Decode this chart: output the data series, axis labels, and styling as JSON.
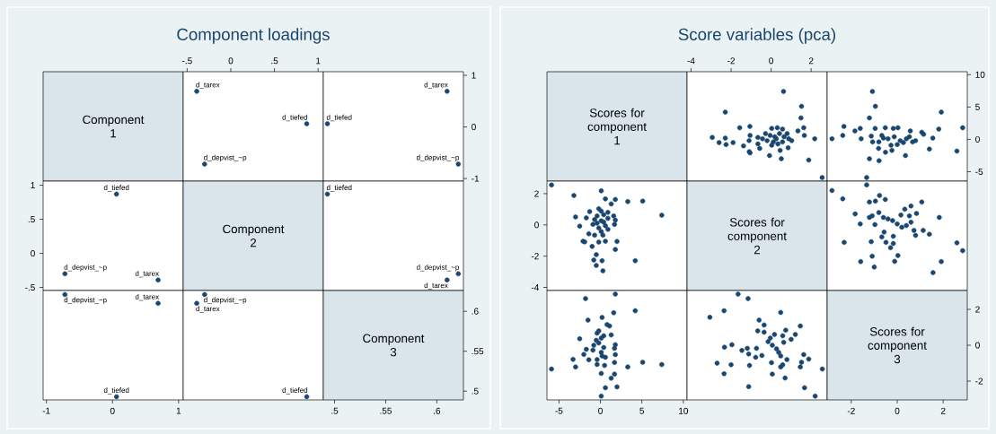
{
  "chart_data": [
    {
      "type": "other",
      "annotations": [
        "Component 1"
      ]
    },
    {
      "type": "scatter",
      "title": "Component loadings",
      "xlim": [
        -0.545,
        1.06
      ],
      "ylim": [
        -1.05,
        1.07
      ],
      "xticks": [
        {
          "value": -0.5,
          "label": "-.5"
        },
        0,
        {
          "value": 0.5,
          "label": ".5"
        },
        1
      ],
      "tick_labels": "x",
      "marker": "circle",
      "series": [
        {
          "name": "d_tarex",
          "color": "#1a476f",
          "x": [
            -0.39
          ],
          "values": [
            0.69
          ]
        },
        {
          "name": "d_tiefed",
          "color": "#1a476f",
          "x": [
            0.87
          ],
          "values": [
            0.06
          ]
        },
        {
          "name": "d_depvist_~p",
          "color": "#1a476f",
          "x": [
            -0.3
          ],
          "values": [
            -0.72
          ]
        }
      ]
    },
    {
      "type": "scatter",
      "xlim": [
        0.489,
        0.626
      ],
      "ylim": [
        -1.05,
        1.07
      ],
      "yticks": [
        -1,
        0,
        1
      ],
      "tick_labels": "y",
      "marker": "circle",
      "series": [
        {
          "name": "d_tarex",
          "color": "#1a476f",
          "x": [
            0.61
          ],
          "values": [
            0.69
          ]
        },
        {
          "name": "d_tiefed",
          "color": "#1a476f",
          "x": [
            0.493
          ],
          "values": [
            0.06
          ]
        },
        {
          "name": "d_depvist_~p",
          "color": "#1a476f",
          "x": [
            0.621
          ],
          "values": [
            -0.72
          ]
        }
      ]
    },
    {
      "type": "scatter",
      "xlim": [
        -1.05,
        1.07
      ],
      "ylim": [
        -0.545,
        1.06
      ],
      "yticks": [
        {
          "value": -0.5,
          "label": "-.5"
        },
        0,
        {
          "value": 0.5,
          "label": ".5"
        },
        1
      ],
      "tick_labels": "y",
      "marker": "circle",
      "series": [
        {
          "name": "d_tarex",
          "color": "#1a476f",
          "x": [
            0.69
          ],
          "values": [
            -0.39
          ]
        },
        {
          "name": "d_tiefed",
          "color": "#1a476f",
          "x": [
            0.06
          ],
          "values": [
            0.87
          ]
        },
        {
          "name": "d_depvist_~p",
          "color": "#1a476f",
          "x": [
            -0.72
          ],
          "values": [
            -0.3
          ]
        }
      ]
    },
    {
      "type": "other",
      "annotations": [
        "Component 2"
      ]
    },
    {
      "type": "scatter",
      "xlim": [
        0.489,
        0.626
      ],
      "ylim": [
        -0.545,
        1.06
      ],
      "tick_labels": false,
      "marker": "circle",
      "series": [
        {
          "name": "d_tarex",
          "color": "#1a476f",
          "x": [
            0.61
          ],
          "values": [
            -0.39
          ]
        },
        {
          "name": "d_tiefed",
          "color": "#1a476f",
          "x": [
            0.493
          ],
          "values": [
            0.87
          ]
        },
        {
          "name": "d_depvist_~p",
          "color": "#1a476f",
          "x": [
            0.621
          ],
          "values": [
            -0.3
          ]
        }
      ]
    },
    {
      "type": "scatter",
      "xlim": [
        -1.05,
        1.07
      ],
      "ylim": [
        0.489,
        0.626
      ],
      "xticks": [
        -1,
        0,
        1
      ],
      "tick_labels": "x",
      "marker": "circle",
      "series": [
        {
          "name": "d_tarex",
          "color": "#1a476f",
          "x": [
            0.69
          ],
          "values": [
            0.61
          ]
        },
        {
          "name": "d_tiefed",
          "color": "#1a476f",
          "x": [
            0.06
          ],
          "values": [
            0.493
          ]
        },
        {
          "name": "d_depvist_~p",
          "color": "#1a476f",
          "x": [
            -0.72
          ],
          "values": [
            0.621
          ]
        }
      ]
    },
    {
      "type": "scatter",
      "xlim": [
        -0.545,
        1.06
      ],
      "ylim": [
        0.489,
        0.626
      ],
      "tick_labels": false,
      "marker": "circle",
      "series": [
        {
          "name": "d_tarex",
          "color": "#1a476f",
          "x": [
            -0.39
          ],
          "values": [
            0.61
          ]
        },
        {
          "name": "d_tiefed",
          "color": "#1a476f",
          "x": [
            0.87
          ],
          "values": [
            0.493
          ]
        },
        {
          "name": "d_depvist_~p",
          "color": "#1a476f",
          "x": [
            -0.3
          ],
          "values": [
            0.621
          ]
        }
      ]
    },
    {
      "type": "scatter",
      "annotations": [
        "Component 3"
      ],
      "xlim": [
        0.489,
        0.626
      ],
      "ylim": [
        0.489,
        0.626
      ],
      "xticks": [
        {
          "value": 0.5,
          "label": ".5"
        },
        {
          "value": 0.55,
          "label": ".55"
        },
        {
          "value": 0.6,
          "label": ".6"
        }
      ],
      "yticks": [
        {
          "value": 0.5,
          "label": ".5"
        },
        {
          "value": 0.55,
          "label": ".55"
        },
        {
          "value": 0.6,
          "label": ".6"
        }
      ]
    },
    {
      "type": "other",
      "annotations": [
        "Scores for component 1"
      ]
    },
    {
      "type": "scatter",
      "title": "Score variables (pca)",
      "xlim": [
        -4.2,
        2.8
      ],
      "ylim": [
        -6.45,
        10.45
      ],
      "xticks": [
        -4,
        -2,
        0,
        2
      ],
      "tick_labels": "x",
      "marker": "circle",
      "series": [
        {
          "color": "#1a476f",
          "x": [
            0.62,
            1.52,
            -2.29,
            1.49,
            -1.57,
            -1.06,
            1.63,
            1.34,
            -2.94,
            -2.29,
            -2.6,
            -2.25,
            -1.9,
            -1.38,
            -1.05,
            -1.1,
            -1.09,
            -1.05,
            -0.66,
            -0.66,
            -0.57,
            -0.08,
            0.45,
            0.51,
            0.85,
            1.66,
            2.18,
            1.88,
            2.55,
            0.03,
            0.31,
            0.57,
            -0.28,
            -0.05,
            0.18,
            0.42,
            0.65,
            0.88,
            1.03,
            0.11,
            0.34,
            -0.2,
            -0.43,
            0.57,
            0.8,
            0.03,
            0.26
          ],
          "values": [
            7.4,
            5.1,
            4.2,
            3.3,
            1.8,
            2.0,
            1.8,
            1.3,
            0.3,
            0.2,
            -0.5,
            -0.8,
            -0.5,
            -1.0,
            0.6,
            -0.2,
            -1.9,
            -2.1,
            0.3,
            -0.7,
            -1.4,
            -2.5,
            -1.7,
            -3.0,
            -1.3,
            0.6,
            0.1,
            -3.2,
            -5.9,
            1.7,
            1.8,
            1.6,
            0.9,
            0.6,
            0.4,
            0.9,
            0.4,
            0.1,
            -0.2,
            -0.4,
            -0.7,
            -0.2,
            0.1,
            -0.4,
            0.9,
            -0.9,
            0.1
          ]
        }
      ]
    },
    {
      "type": "scatter",
      "xlim": [
        -3.05,
        3.05
      ],
      "ylim": [
        -6.45,
        10.45
      ],
      "yticks": [
        -5,
        0,
        5,
        10
      ],
      "tick_labels": "y",
      "marker": "circle",
      "series": [
        {
          "color": "#1a476f",
          "x": [
            -1.08,
            -0.95,
            1.92,
            -1.21,
            -2.32,
            2.85,
            1.81,
            -1.61,
            -1.84,
            -2.37,
            -2.84,
            -1.57,
            -1.13,
            -0.96,
            -0.52,
            -0.17,
            0.03,
            0.57,
            1.07,
            1.15,
            1.55,
            1.4,
            2.6,
            0.36,
            -1.21,
            -0.79,
            -0.51,
            -0.23,
            -1.33,
            -0.81,
            -0.67,
            -0.4,
            -0.13,
            0.13,
            0.4,
            0.67,
            0.8,
            -0.27,
            0.0,
            0.27,
            -0.8,
            -0.6,
            0.53,
            -1.07
          ],
          "values": [
            7.4,
            5.1,
            4.2,
            3.3,
            2.0,
            1.8,
            1.6,
            1.7,
            1.3,
            0.6,
            0.1,
            0.1,
            0.5,
            1.7,
            1.8,
            1.7,
            1.8,
            1.3,
            1.1,
            0.8,
            0.2,
            -1.5,
            -1.8,
            -2.5,
            -3.0,
            -3.3,
            -2.0,
            -1.7,
            -5.9,
            -1.4,
            0.6,
            0.1,
            0.4,
            -0.2,
            0.1,
            -0.4,
            -0.2,
            -0.9,
            -0.8,
            -0.5,
            -0.4,
            0.2,
            0.4,
            -0.4
          ]
        }
      ]
    },
    {
      "type": "scatter",
      "xlim": [
        -6.45,
        10.45
      ],
      "ylim": [
        -4.2,
        2.8
      ],
      "yticks": [
        -4,
        -2,
        0,
        2
      ],
      "tick_labels": "y",
      "marker": "circle",
      "series": [
        {
          "color": "#1a476f",
          "x": [
            7.4,
            5.1,
            4.2,
            3.3,
            1.8,
            2.0,
            1.8,
            1.3,
            0.3,
            0.2,
            -0.5,
            -0.8,
            -0.5,
            -1.0,
            0.6,
            -0.2,
            -1.9,
            -2.1,
            0.3,
            -0.7,
            -1.4,
            -2.5,
            -1.7,
            -3.0,
            -1.3,
            0.6,
            0.1,
            -3.2,
            -5.9,
            1.7,
            1.8,
            1.6,
            0.9,
            0.6,
            0.4,
            0.9,
            0.4,
            0.1,
            -0.2,
            -0.4,
            -0.7,
            -0.2,
            0.1,
            -0.4,
            0.9,
            -0.9,
            0.1
          ],
          "values": [
            0.62,
            1.52,
            -2.29,
            1.49,
            -1.57,
            -1.06,
            1.63,
            1.34,
            -2.94,
            -2.29,
            -2.6,
            -2.25,
            -1.9,
            -1.38,
            -1.05,
            -1.1,
            -1.09,
            -1.05,
            -0.66,
            -0.66,
            -0.57,
            -0.08,
            0.45,
            0.51,
            0.85,
            1.66,
            2.18,
            1.88,
            2.55,
            0.03,
            0.31,
            0.57,
            -0.28,
            -0.05,
            0.18,
            0.42,
            0.65,
            0.88,
            1.03,
            0.11,
            0.34,
            -0.2,
            -0.43,
            0.57,
            0.8,
            0.03,
            0.26
          ]
        }
      ]
    },
    {
      "type": "other",
      "annotations": [
        "Scores for component 2"
      ]
    },
    {
      "type": "scatter",
      "xlim": [
        -3.05,
        3.05
      ],
      "ylim": [
        -4.2,
        2.8
      ],
      "tick_labels": false,
      "marker": "circle",
      "series": [
        {
          "color": "#1a476f",
          "x": [
            -2.84,
            -1.33,
            -2.37,
            -1.83,
            -1.61,
            -2.31,
            -1.59,
            -1.21,
            -0.95,
            -0.77,
            -0.52,
            -1.21,
            -1.09,
            -0.97,
            -1.13,
            -1.09,
            -1.0,
            -0.67,
            -0.57,
            -0.49,
            -0.29,
            -0.17,
            -0.17,
            -0.11,
            0.03,
            -0.8,
            -0.6,
            -0.4,
            -0.2,
            0.0,
            0.2,
            0.4,
            0.6,
            0.53,
            0.33,
            0.6,
            0.16,
            0.84,
            1.07,
            0.73,
            0.8,
            1.13,
            1.4,
            1.83,
            1.92,
            1.56,
            2.6,
            2.85
          ],
          "values": [
            2.2,
            2.56,
            1.67,
            0.7,
            0.06,
            -1.12,
            -2.35,
            1.46,
            1.52,
            1.88,
            1.63,
            0.48,
            0.58,
            0.02,
            -1.08,
            -2.0,
            -2.7,
            -0.77,
            -0.46,
            -1.12,
            -1.46,
            -1.19,
            -0.73,
            -2.33,
            -1.96,
            0.79,
            0.48,
            0.38,
            0.27,
            0.06,
            -0.15,
            -0.04,
            0.17,
            0.58,
            1.0,
            1.21,
            0.63,
            0.73,
            1.46,
            -0.35,
            -0.67,
            -0.35,
            -0.6,
            0.48,
            -2.35,
            -3.06,
            -1.15,
            -1.65
          ]
        }
      ]
    },
    {
      "type": "scatter",
      "xlim": [
        -6.45,
        10.45
      ],
      "ylim": [
        -3.05,
        3.05
      ],
      "xticks": [
        -5,
        0,
        5,
        10
      ],
      "tick_labels": "x",
      "marker": "circle",
      "series": [
        {
          "color": "#1a476f",
          "x": [
            7.4,
            5.1,
            4.2,
            3.3,
            2.0,
            1.8,
            1.6,
            1.7,
            1.3,
            0.6,
            0.1,
            0.1,
            0.5,
            1.7,
            1.8,
            1.7,
            1.8,
            1.3,
            1.1,
            0.8,
            0.2,
            -1.5,
            -1.8,
            -2.5,
            -3.0,
            -3.3,
            -2.0,
            -1.7,
            -5.9,
            -1.4,
            0.6,
            0.1,
            0.4,
            -0.2,
            0.1,
            -0.4,
            -0.2,
            -0.9,
            -0.8,
            -0.5,
            -0.4,
            0.2,
            0.4,
            -0.4
          ],
          "values": [
            -1.08,
            -0.95,
            1.92,
            -1.21,
            -2.32,
            2.85,
            1.81,
            -1.61,
            -1.84,
            -2.37,
            -2.84,
            -1.57,
            -1.13,
            -0.96,
            -0.52,
            -0.17,
            0.03,
            0.57,
            1.07,
            1.15,
            1.55,
            1.4,
            2.6,
            0.36,
            -1.21,
            -0.79,
            -0.51,
            -0.23,
            -1.33,
            -0.81,
            -0.67,
            -0.4,
            -0.13,
            0.13,
            0.4,
            0.67,
            0.8,
            -0.27,
            0.0,
            0.27,
            -0.8,
            -0.6,
            0.53,
            -1.07
          ]
        }
      ]
    },
    {
      "type": "scatter",
      "xlim": [
        -4.2,
        2.8
      ],
      "ylim": [
        -3.05,
        3.05
      ],
      "tick_labels": false,
      "marker": "circle",
      "series": [
        {
          "color": "#1a476f",
          "x": [
            2.2,
            2.56,
            1.67,
            0.7,
            0.06,
            -1.12,
            -2.35,
            1.46,
            1.52,
            1.88,
            1.63,
            0.48,
            0.58,
            0.02,
            -1.08,
            -2.0,
            -2.7,
            -0.77,
            -0.46,
            -1.12,
            -1.46,
            -1.19,
            -0.73,
            -2.33,
            -1.96,
            0.79,
            0.48,
            0.38,
            0.27,
            0.06,
            -0.15,
            -0.04,
            0.17,
            0.58,
            1.0,
            1.21,
            0.63,
            0.73,
            1.46,
            -0.35,
            -0.67,
            -0.35,
            -0.6,
            0.48,
            -2.35,
            -3.06,
            -1.15,
            -1.65
          ],
          "values": [
            -2.84,
            -1.33,
            -2.37,
            -1.83,
            -1.61,
            -2.31,
            -1.59,
            -1.21,
            -0.95,
            -0.77,
            -0.52,
            -1.21,
            -1.09,
            -0.97,
            -1.13,
            -1.09,
            -1.0,
            -0.67,
            -0.57,
            -0.49,
            -0.29,
            -0.17,
            -0.17,
            -0.11,
            0.03,
            -0.8,
            -0.6,
            -0.4,
            -0.2,
            0.0,
            0.2,
            0.4,
            0.6,
            0.53,
            0.33,
            0.6,
            0.16,
            0.84,
            1.07,
            0.73,
            0.8,
            1.13,
            1.4,
            1.83,
            1.92,
            1.56,
            2.6,
            2.85
          ]
        }
      ]
    },
    {
      "type": "scatter",
      "annotations": [
        "Scores for component 3"
      ],
      "xlim": [
        -3.05,
        3.05
      ],
      "ylim": [
        -3.05,
        3.05
      ],
      "xticks": [
        -2,
        0,
        2
      ],
      "yticks": [
        -2,
        0,
        2
      ]
    }
  ]
}
